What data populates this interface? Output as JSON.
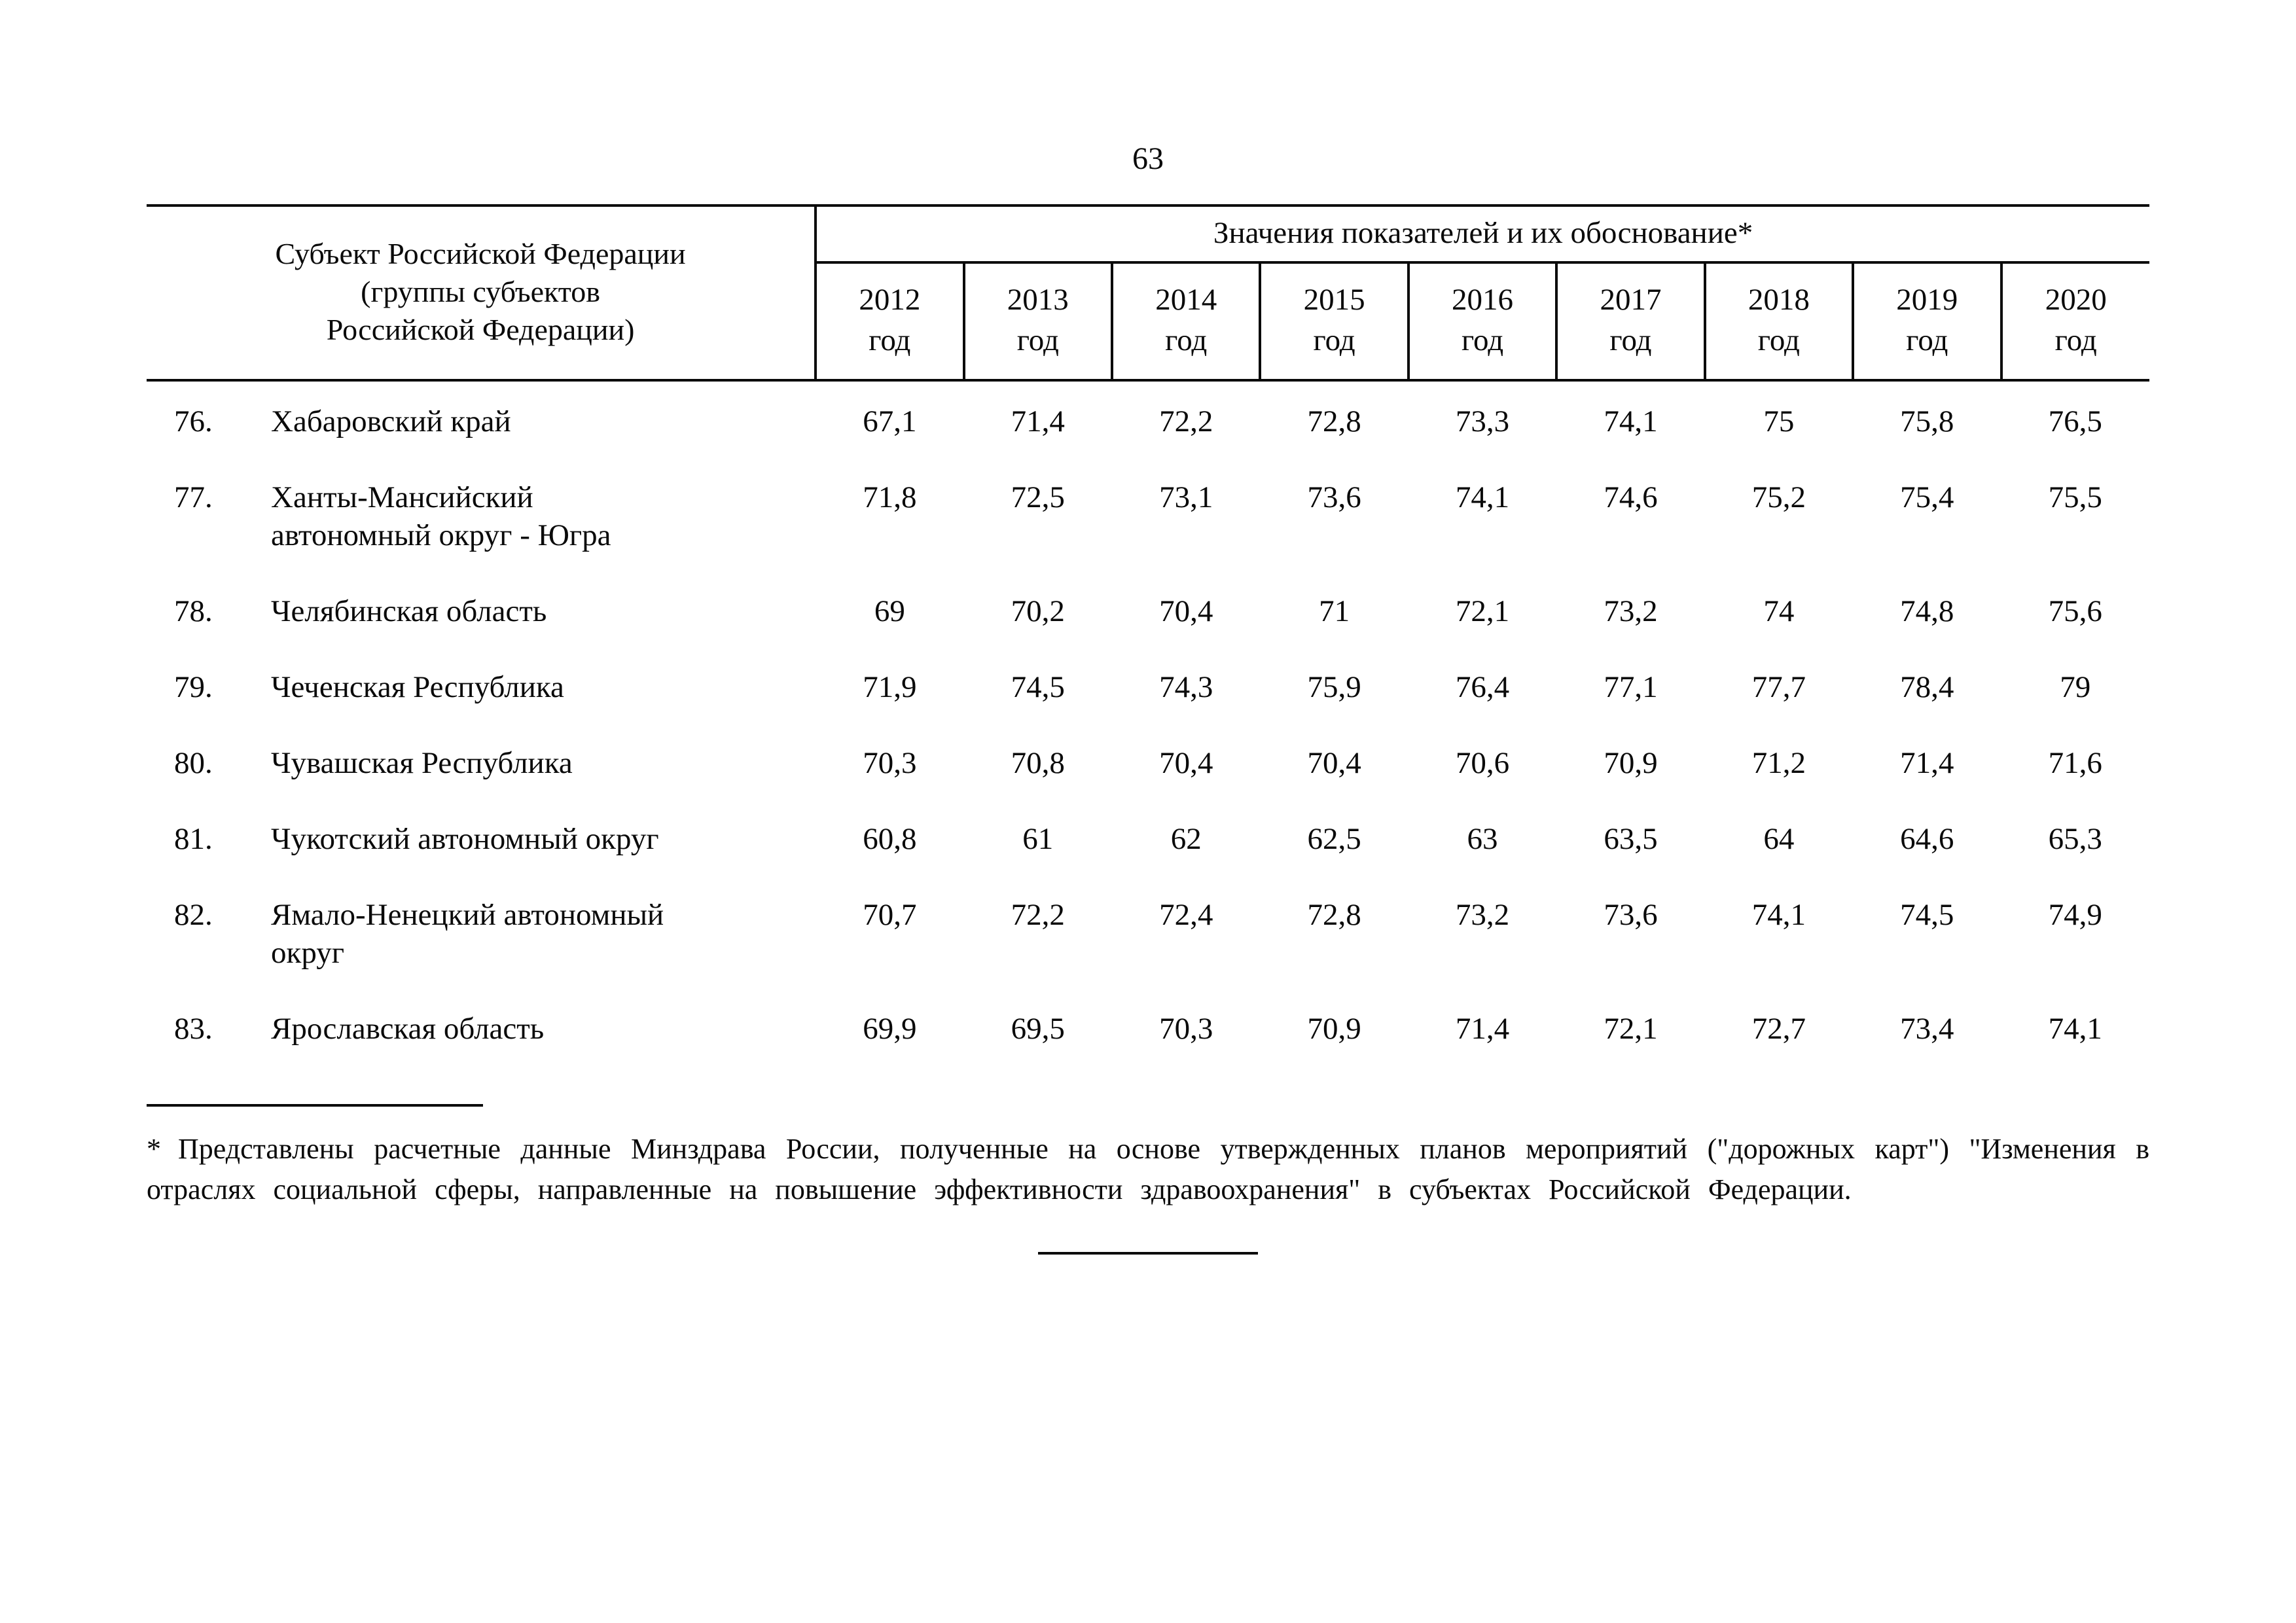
{
  "page": {
    "number": "63"
  },
  "table": {
    "subject_header_lines": [
      "Субъект Российской Федерации",
      "(группы субъектов",
      "Российской Федерации)"
    ],
    "values_header": "Значения показателей и их обоснование*",
    "year_sublabel": "год",
    "years": [
      "2012",
      "2013",
      "2014",
      "2015",
      "2016",
      "2017",
      "2018",
      "2019",
      "2020"
    ],
    "rows": [
      {
        "num": "76.",
        "name_lines": [
          "Хабаровский край"
        ],
        "values": [
          "67,1",
          "71,4",
          "72,2",
          "72,8",
          "73,3",
          "74,1",
          "75",
          "75,8",
          "76,5"
        ]
      },
      {
        "num": "77.",
        "name_lines": [
          "Ханты-Мансийский",
          "автономный округ - Югра"
        ],
        "values": [
          "71,8",
          "72,5",
          "73,1",
          "73,6",
          "74,1",
          "74,6",
          "75,2",
          "75,4",
          "75,5"
        ]
      },
      {
        "num": "78.",
        "name_lines": [
          "Челябинская область"
        ],
        "values": [
          "69",
          "70,2",
          "70,4",
          "71",
          "72,1",
          "73,2",
          "74",
          "74,8",
          "75,6"
        ]
      },
      {
        "num": "79.",
        "name_lines": [
          "Чеченская Республика"
        ],
        "values": [
          "71,9",
          "74,5",
          "74,3",
          "75,9",
          "76,4",
          "77,1",
          "77,7",
          "78,4",
          "79"
        ]
      },
      {
        "num": "80.",
        "name_lines": [
          "Чувашская Республика"
        ],
        "values": [
          "70,3",
          "70,8",
          "70,4",
          "70,4",
          "70,6",
          "70,9",
          "71,2",
          "71,4",
          "71,6"
        ]
      },
      {
        "num": "81.",
        "name_lines": [
          "Чукотский автономный округ"
        ],
        "values": [
          "60,8",
          "61",
          "62",
          "62,5",
          "63",
          "63,5",
          "64",
          "64,6",
          "65,3"
        ]
      },
      {
        "num": "82.",
        "name_lines": [
          "Ямало-Ненецкий автономный",
          "округ"
        ],
        "values": [
          "70,7",
          "72,2",
          "72,4",
          "72,8",
          "73,2",
          "73,6",
          "74,1",
          "74,5",
          "74,9"
        ]
      },
      {
        "num": "83.",
        "name_lines": [
          "Ярославская область"
        ],
        "values": [
          "69,9",
          "69,5",
          "70,3",
          "70,9",
          "71,4",
          "72,1",
          "72,7",
          "73,4",
          "74,1"
        ]
      }
    ]
  },
  "footnote": {
    "marker": "*",
    "text": "Представлены расчетные данные Минздрава России, полученные на основе утвержденных планов мероприятий (\"дорожных карт\") \"Изменения в отраслях социальной сферы, направленные на повышение эффективности здравоохранения\" в субъектах Российской Федерации."
  },
  "ink_color": "#0a0a0a",
  "paper_color": "#ffffff"
}
